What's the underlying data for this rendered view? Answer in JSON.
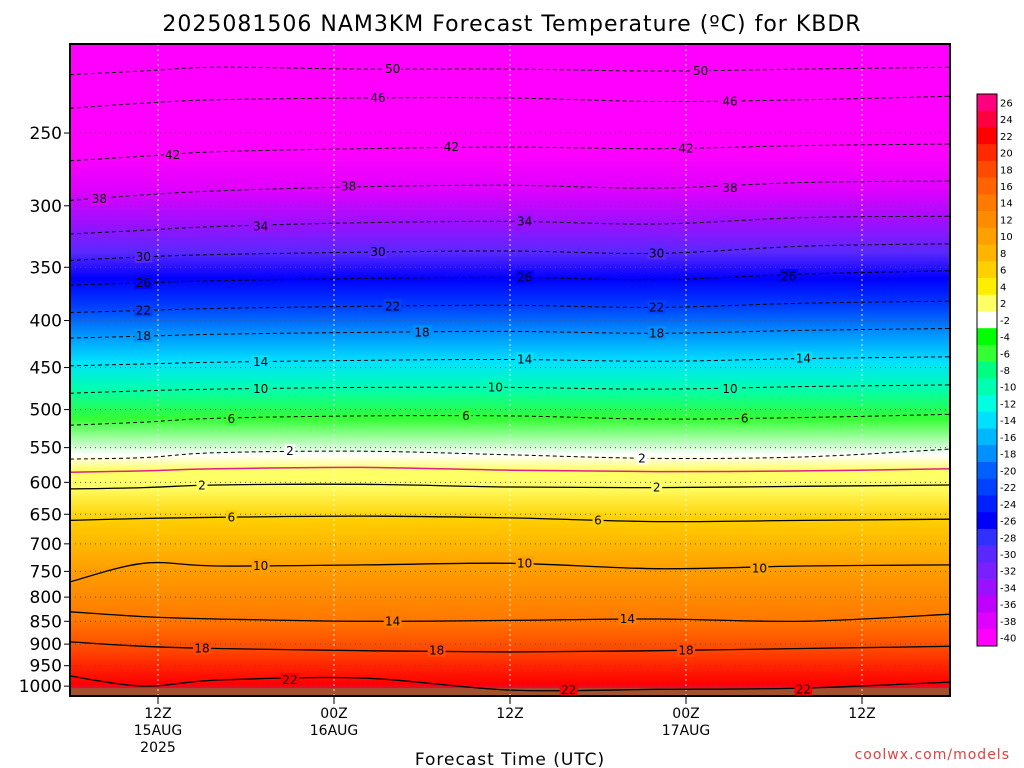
{
  "chart_data": {
    "type": "heatmap",
    "title": "2025081506 NAM3KM Forecast Temperature (ºC) for KBDR",
    "xlabel": "Forecast Time (UTC)",
    "ylabel": "",
    "credit": "coolwx.com/models",
    "y_axis_scale": "log-pressure (hPa), inverted",
    "ylim": [
      1025,
      200
    ],
    "y_ticks": [
      250,
      300,
      350,
      400,
      450,
      500,
      550,
      600,
      650,
      700,
      750,
      800,
      850,
      900,
      950,
      1000
    ],
    "x_range_hours": [
      0,
      60
    ],
    "x_ticks": [
      {
        "hour": 6,
        "line1": "12Z",
        "line2": "15AUG",
        "line3": "2025"
      },
      {
        "hour": 18,
        "line1": "00Z",
        "line2": "16AUG",
        "line3": ""
      },
      {
        "hour": 30,
        "line1": "12Z",
        "line2": "",
        "line3": ""
      },
      {
        "hour": 42,
        "line1": "00Z",
        "line2": "17AUG",
        "line3": ""
      },
      {
        "hour": 54,
        "line1": "12Z",
        "line2": "",
        "line3": ""
      }
    ],
    "grid": true,
    "contour_interval": 4,
    "zero_line_color": "#e0208a",
    "colorbar": {
      "placement": "right",
      "levels": [
        26,
        24,
        22,
        20,
        18,
        16,
        14,
        12,
        10,
        8,
        6,
        4,
        2,
        -2,
        -4,
        -6,
        -8,
        -10,
        -12,
        -14,
        -16,
        -18,
        -20,
        -22,
        -24,
        -26,
        -28,
        -30,
        -32,
        -34,
        -36,
        -38,
        -40
      ],
      "colors": [
        "#ff007f",
        "#ff0040",
        "#ff0000",
        "#ff2a00",
        "#ff4a00",
        "#ff6400",
        "#ff7a00",
        "#ff8c00",
        "#ffa000",
        "#ffb400",
        "#ffd000",
        "#ffee00",
        "#ffff66",
        "#ffffff",
        "#00ff00",
        "#33ff33",
        "#00ff80",
        "#00ffb0",
        "#00ffe0",
        "#00e0ff",
        "#00b8ff",
        "#0090ff",
        "#0060ff",
        "#0040ff",
        "#0020ff",
        "#0000ff",
        "#3030ff",
        "#5a28ff",
        "#7a20ff",
        "#9a10ff",
        "#c000ff",
        "#e000ff",
        "#ff00ff"
      ]
    },
    "isotherms": [
      {
        "value": -50,
        "style": "dashed",
        "points": [
          [
            0,
            216
          ],
          [
            5,
            214
          ],
          [
            10,
            212
          ],
          [
            20,
            213
          ],
          [
            30,
            213
          ],
          [
            40,
            214
          ],
          [
            50,
            213
          ],
          [
            60,
            212
          ]
        ],
        "labels": [
          [
            22,
            213
          ],
          [
            43,
            214
          ]
        ]
      },
      {
        "value": -46,
        "style": "dashed",
        "points": [
          [
            0,
            235
          ],
          [
            5,
            232
          ],
          [
            10,
            230
          ],
          [
            20,
            229
          ],
          [
            30,
            229
          ],
          [
            40,
            231
          ],
          [
            50,
            230
          ],
          [
            60,
            228
          ]
        ],
        "labels": [
          [
            21,
            229
          ],
          [
            45,
            231
          ]
        ]
      },
      {
        "value": -42,
        "style": "dashed",
        "points": [
          [
            0,
            268
          ],
          [
            5,
            265
          ],
          [
            10,
            262
          ],
          [
            20,
            260
          ],
          [
            30,
            259
          ],
          [
            40,
            260
          ],
          [
            50,
            258
          ],
          [
            60,
            257
          ]
        ],
        "labels": [
          [
            7,
            264
          ],
          [
            26,
            259
          ],
          [
            42,
            260
          ]
        ]
      },
      {
        "value": -38,
        "style": "dashed",
        "points": [
          [
            0,
            296
          ],
          [
            5,
            292
          ],
          [
            10,
            289
          ],
          [
            20,
            286
          ],
          [
            30,
            285
          ],
          [
            40,
            287
          ],
          [
            50,
            283
          ],
          [
            60,
            282
          ]
        ],
        "labels": [
          [
            2,
            295
          ],
          [
            19,
            286
          ],
          [
            45,
            287
          ]
        ]
      },
      {
        "value": -34,
        "style": "dashed",
        "points": [
          [
            0,
            322
          ],
          [
            5,
            319
          ],
          [
            10,
            316
          ],
          [
            20,
            313
          ],
          [
            30,
            312
          ],
          [
            40,
            314
          ],
          [
            50,
            309
          ],
          [
            60,
            308
          ]
        ],
        "labels": [
          [
            13,
            316
          ],
          [
            31,
            312
          ]
        ]
      },
      {
        "value": -30,
        "style": "dashed",
        "points": [
          [
            0,
            344
          ],
          [
            5,
            341
          ],
          [
            10,
            339
          ],
          [
            20,
            337
          ],
          [
            30,
            336
          ],
          [
            40,
            338
          ],
          [
            50,
            332
          ],
          [
            60,
            330
          ]
        ],
        "labels": [
          [
            5,
            341
          ],
          [
            21,
            337
          ],
          [
            40,
            338
          ]
        ]
      },
      {
        "value": -26,
        "style": "dashed",
        "points": [
          [
            0,
            366
          ],
          [
            5,
            364
          ],
          [
            10,
            362
          ],
          [
            20,
            360
          ],
          [
            30,
            359
          ],
          [
            40,
            361
          ],
          [
            50,
            356
          ],
          [
            60,
            353
          ]
        ],
        "labels": [
          [
            5,
            364
          ],
          [
            31,
            359
          ],
          [
            49,
            358
          ]
        ]
      },
      {
        "value": -22,
        "style": "dashed",
        "points": [
          [
            0,
            392
          ],
          [
            5,
            390
          ],
          [
            10,
            388
          ],
          [
            20,
            386
          ],
          [
            30,
            385
          ],
          [
            40,
            387
          ],
          [
            50,
            383
          ],
          [
            60,
            381
          ]
        ],
        "labels": [
          [
            5,
            390
          ],
          [
            22,
            386
          ],
          [
            40,
            387
          ]
        ]
      },
      {
        "value": -18,
        "style": "dashed",
        "points": [
          [
            0,
            418
          ],
          [
            5,
            416
          ],
          [
            10,
            414
          ],
          [
            20,
            412
          ],
          [
            30,
            411
          ],
          [
            40,
            413
          ],
          [
            50,
            410
          ],
          [
            60,
            408
          ]
        ],
        "labels": [
          [
            5,
            416
          ],
          [
            24,
            412
          ],
          [
            40,
            413
          ]
        ]
      },
      {
        "value": -14,
        "style": "dashed",
        "points": [
          [
            0,
            448
          ],
          [
            5,
            446
          ],
          [
            10,
            444
          ],
          [
            20,
            442
          ],
          [
            30,
            441
          ],
          [
            40,
            443
          ],
          [
            50,
            440
          ],
          [
            60,
            438
          ]
        ],
        "labels": [
          [
            13,
            444
          ],
          [
            31,
            441
          ],
          [
            50,
            440
          ]
        ]
      },
      {
        "value": -10,
        "style": "dashed",
        "points": [
          [
            0,
            480
          ],
          [
            5,
            477
          ],
          [
            10,
            475
          ],
          [
            20,
            473
          ],
          [
            30,
            473
          ],
          [
            40,
            475
          ],
          [
            50,
            472
          ],
          [
            60,
            470
          ]
        ],
        "labels": [
          [
            13,
            475
          ],
          [
            29,
            473
          ],
          [
            45,
            475
          ]
        ]
      },
      {
        "value": -6,
        "style": "dashed",
        "points": [
          [
            0,
            520
          ],
          [
            5,
            516
          ],
          [
            10,
            511
          ],
          [
            20,
            508
          ],
          [
            30,
            508
          ],
          [
            40,
            512
          ],
          [
            50,
            510
          ],
          [
            60,
            506
          ]
        ],
        "labels": [
          [
            11,
            512
          ],
          [
            27,
            508
          ],
          [
            46,
            511
          ]
        ]
      },
      {
        "value": -2,
        "style": "dashed",
        "points": [
          [
            0,
            566
          ],
          [
            5,
            564
          ],
          [
            10,
            557
          ],
          [
            20,
            555
          ],
          [
            30,
            560
          ],
          [
            40,
            565
          ],
          [
            50,
            563
          ],
          [
            60,
            552
          ]
        ],
        "labels": [
          [
            15,
            555
          ],
          [
            39,
            565
          ]
        ]
      },
      {
        "value": 0,
        "style": "zero",
        "points": [
          [
            0,
            585
          ],
          [
            5,
            583
          ],
          [
            10,
            580
          ],
          [
            20,
            578
          ],
          [
            30,
            582
          ],
          [
            40,
            584
          ],
          [
            50,
            583
          ],
          [
            60,
            580
          ]
        ],
        "labels": []
      },
      {
        "value": 2,
        "style": "solid",
        "points": [
          [
            0,
            610
          ],
          [
            5,
            608
          ],
          [
            10,
            604
          ],
          [
            20,
            603
          ],
          [
            30,
            607
          ],
          [
            40,
            608
          ],
          [
            50,
            606
          ],
          [
            60,
            604
          ]
        ],
        "labels": [
          [
            9,
            605
          ],
          [
            40,
            608
          ]
        ]
      },
      {
        "value": 6,
        "style": "solid",
        "points": [
          [
            0,
            660
          ],
          [
            5,
            657
          ],
          [
            10,
            655
          ],
          [
            20,
            653
          ],
          [
            30,
            656
          ],
          [
            40,
            662
          ],
          [
            50,
            660
          ],
          [
            60,
            658
          ]
        ],
        "labels": [
          [
            11,
            655
          ],
          [
            36,
            660
          ]
        ]
      },
      {
        "value": 10,
        "style": "solid",
        "points": [
          [
            0,
            770
          ],
          [
            5,
            735
          ],
          [
            10,
            740
          ],
          [
            20,
            738
          ],
          [
            30,
            735
          ],
          [
            40,
            745
          ],
          [
            50,
            740
          ],
          [
            60,
            738
          ]
        ],
        "labels": [
          [
            13,
            740
          ],
          [
            31,
            735
          ],
          [
            47,
            745
          ]
        ]
      },
      {
        "value": 14,
        "style": "solid",
        "points": [
          [
            0,
            830
          ],
          [
            5,
            840
          ],
          [
            10,
            845
          ],
          [
            20,
            850
          ],
          [
            30,
            848
          ],
          [
            40,
            845
          ],
          [
            50,
            850
          ],
          [
            60,
            835
          ]
        ],
        "labels": [
          [
            22,
            850
          ],
          [
            38,
            845
          ]
        ]
      },
      {
        "value": 18,
        "style": "solid",
        "points": [
          [
            0,
            895
          ],
          [
            5,
            905
          ],
          [
            10,
            910
          ],
          [
            20,
            915
          ],
          [
            30,
            918
          ],
          [
            40,
            915
          ],
          [
            50,
            910
          ],
          [
            60,
            905
          ]
        ],
        "labels": [
          [
            9,
            910
          ],
          [
            25,
            915
          ],
          [
            42,
            915
          ]
        ]
      },
      {
        "value": 22,
        "style": "solid",
        "points": [
          [
            0,
            975
          ],
          [
            5,
            1000
          ],
          [
            10,
            985
          ],
          [
            20,
            980
          ],
          [
            30,
            1010
          ],
          [
            40,
            1008
          ],
          [
            50,
            1005
          ],
          [
            60,
            990
          ]
        ],
        "labels": [
          [
            15,
            985
          ],
          [
            34,
            1010
          ],
          [
            50,
            1008
          ]
        ]
      }
    ],
    "ground_color": "#a0522d"
  }
}
